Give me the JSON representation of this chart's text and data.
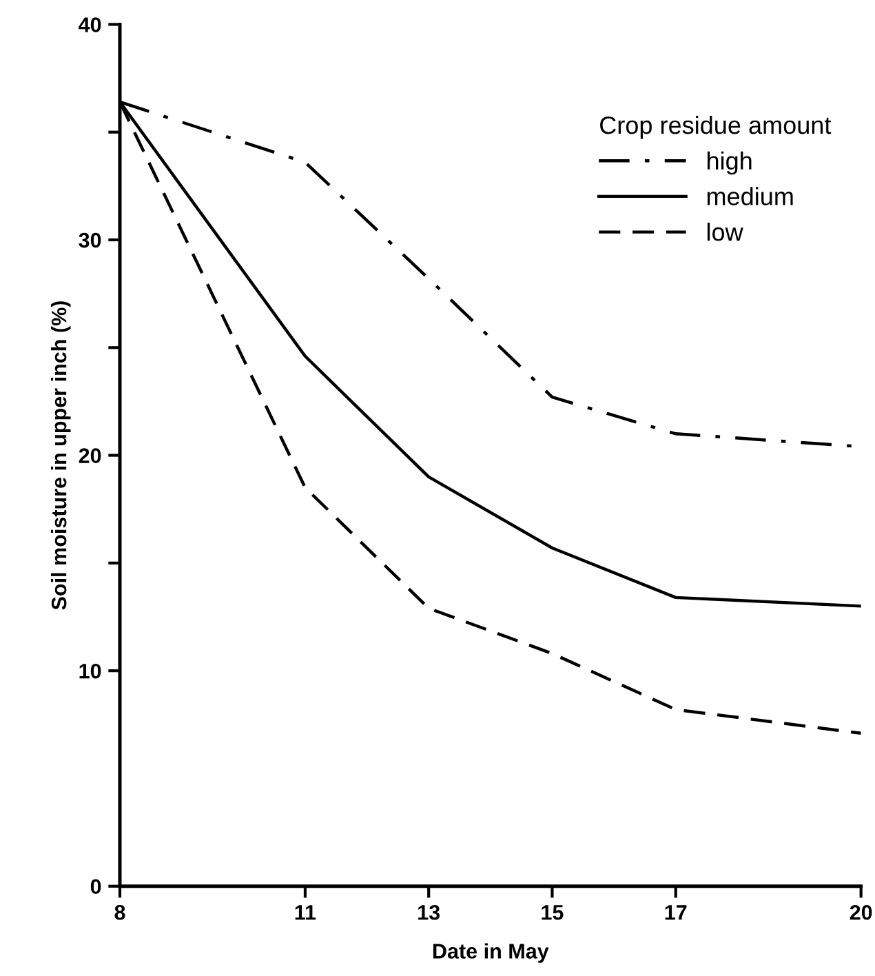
{
  "chart_data": {
    "type": "line",
    "xlabel": "Date in May",
    "ylabel": "Soil moisture in upper inch (%)",
    "legend_title": "Crop residue amount",
    "legend": "top right",
    "grid": false,
    "marker": "none",
    "x": [
      8,
      11,
      13,
      15,
      17,
      20
    ],
    "xlim": [
      8,
      20
    ],
    "xticks": [
      8,
      11,
      13,
      15,
      17,
      20
    ],
    "ylim": [
      0,
      40
    ],
    "yticks": [
      0,
      10,
      {
        "value": 15,
        "label": null
      },
      20,
      {
        "value": 25,
        "label": null
      },
      30,
      {
        "value": 35,
        "label": null
      },
      40
    ],
    "series": [
      {
        "name": "high",
        "color": "#000000",
        "line_style": "dashdot",
        "values": [
          36.4,
          33.6,
          28.2,
          22.7,
          21.0,
          20.4
        ]
      },
      {
        "name": "medium",
        "color": "#000000",
        "line_style": "solid",
        "values": [
          36.4,
          24.6,
          19.0,
          15.7,
          13.4,
          13.0
        ]
      },
      {
        "name": "low",
        "color": "#000000",
        "line_style": "dashed",
        "values": [
          36.4,
          18.5,
          12.9,
          10.8,
          8.2,
          7.1
        ]
      }
    ]
  }
}
